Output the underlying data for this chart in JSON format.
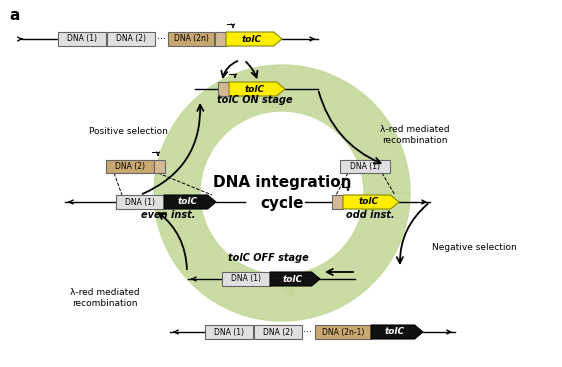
{
  "bg_color": "#ffffff",
  "green_fill": "#c5d99a",
  "title": "DNA integration\ncycle",
  "label_a": "a",
  "pos_sel": "Positive selection",
  "neg_sel": "Negative selection",
  "lambda_right": "λ-red mediated\nrecombination",
  "lambda_left": "λ-red mediated\nrecombination",
  "tolc_on_label": "tolC ON stage",
  "tolc_off_label": "tolC OFF stage",
  "odd_label": "odd inst.",
  "even_label": "even inst.",
  "yellow": "#ffee00",
  "tan": "#d4b896",
  "light_gray": "#e0e0e0",
  "tan_dark": "#c8a870",
  "black_fill": "#111111",
  "white": "#ffffff",
  "outline": "#666666",
  "outline_dark": "#999900"
}
